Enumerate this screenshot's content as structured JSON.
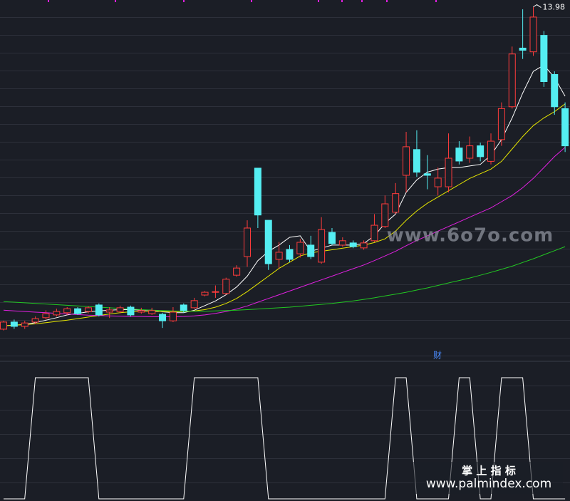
{
  "chart_data": [
    {
      "type": "candlestick",
      "ylim": [
        2.6,
        14.2
      ],
      "up_color": "#ff3c3c",
      "down_color": "#54eef2",
      "open": [
        3.59,
        3.82,
        3.68,
        3.82,
        3.96,
        4.05,
        4.12,
        4.25,
        4.16,
        4.37,
        4.14,
        4.16,
        4.3,
        4.14,
        4.09,
        4.07,
        3.86,
        4.37,
        4.28,
        4.69,
        4.78,
        4.74,
        5.33,
        5.93,
        8.78,
        7.1,
        5.84,
        6.16,
        6.02,
        6.3,
        5.75,
        6.71,
        6.3,
        6.37,
        6.21,
        6.44,
        6.9,
        7.36,
        8.55,
        9.38,
        8.6,
        8.18,
        8.18,
        9.43,
        9.1,
        9.5,
        9.0,
        9.7,
        10.76,
        12.65,
        12.53,
        13.06,
        11.8,
        10.7
      ],
      "high": [
        3.86,
        3.9,
        3.86,
        4.0,
        4.2,
        4.25,
        4.3,
        4.3,
        4.33,
        4.42,
        4.3,
        4.35,
        4.35,
        4.28,
        4.28,
        4.12,
        4.3,
        4.42,
        4.6,
        4.82,
        5.0,
        5.25,
        5.65,
        7.1,
        8.78,
        7.1,
        6.4,
        6.3,
        6.5,
        6.6,
        7.2,
        6.85,
        6.55,
        6.45,
        6.45,
        7.3,
        7.9,
        8.3,
        9.95,
        10.0,
        9.2,
        8.8,
        9.9,
        9.65,
        9.8,
        9.6,
        9.9,
        10.9,
        12.7,
        13.9,
        13.98,
        13.2,
        11.9,
        10.9
      ],
      "low": [
        3.55,
        3.6,
        3.6,
        3.75,
        3.9,
        4.0,
        4.05,
        4.05,
        4.1,
        4.0,
        3.95,
        4.1,
        4.0,
        4.09,
        4.05,
        3.63,
        3.82,
        4.12,
        4.25,
        4.65,
        4.6,
        4.7,
        5.28,
        5.6,
        6.85,
        5.5,
        5.55,
        5.75,
        5.9,
        5.85,
        5.7,
        6.3,
        6.25,
        6.2,
        6.15,
        6.4,
        6.85,
        7.3,
        8.0,
        8.5,
        8.1,
        7.9,
        8.0,
        8.9,
        8.95,
        9.0,
        8.9,
        9.5,
        10.7,
        12.3,
        12.4,
        11.4,
        10.5,
        9.3
      ],
      "close": [
        3.82,
        3.68,
        3.79,
        3.93,
        4.09,
        4.16,
        4.25,
        4.09,
        4.28,
        4.05,
        4.21,
        4.28,
        4.05,
        4.19,
        4.19,
        3.86,
        4.14,
        4.19,
        4.51,
        4.78,
        4.8,
        5.2,
        5.56,
        6.85,
        7.27,
        5.7,
        6.07,
        5.84,
        6.39,
        5.93,
        6.8,
        6.35,
        6.44,
        6.25,
        6.37,
        6.94,
        7.63,
        7.96,
        9.47,
        8.65,
        8.55,
        8.46,
        9.1,
        9.01,
        9.5,
        9.15,
        9.65,
        10.7,
        12.46,
        12.58,
        13.65,
        11.57,
        10.76,
        9.5
      ],
      "lines": [
        {
          "color": "#ffffff",
          "values": [
            3.7,
            3.72,
            3.74,
            3.8,
            3.88,
            3.96,
            4.05,
            4.1,
            4.15,
            4.18,
            4.2,
            4.22,
            4.22,
            4.2,
            4.2,
            4.15,
            4.12,
            4.12,
            4.2,
            4.35,
            4.5,
            4.7,
            4.95,
            5.3,
            5.8,
            6.1,
            6.3,
            6.55,
            6.6,
            6.1,
            6.2,
            6.3,
            6.3,
            6.3,
            6.35,
            6.6,
            7.0,
            7.3,
            8.0,
            8.4,
            8.65,
            8.75,
            8.8,
            8.8,
            8.85,
            8.9,
            9.2,
            9.7,
            10.4,
            11.2,
            11.9,
            12.1,
            11.7,
            11.1
          ]
        },
        {
          "color": "#e6e600",
          "values": [
            3.7,
            3.72,
            3.74,
            3.76,
            3.8,
            3.84,
            3.88,
            3.93,
            3.98,
            4.03,
            4.08,
            4.12,
            4.15,
            4.17,
            4.17,
            4.16,
            4.15,
            4.16,
            4.18,
            4.22,
            4.3,
            4.42,
            4.58,
            4.8,
            5.05,
            5.3,
            5.55,
            5.75,
            5.95,
            6.05,
            6.1,
            6.15,
            6.2,
            6.25,
            6.3,
            6.38,
            6.5,
            6.75,
            7.1,
            7.4,
            7.65,
            7.85,
            8.05,
            8.25,
            8.45,
            8.6,
            8.75,
            9.0,
            9.4,
            9.8,
            10.15,
            10.4,
            10.6,
            10.85
          ]
        },
        {
          "color": "#e020e0",
          "values": [
            4.2,
            4.18,
            4.16,
            4.14,
            4.12,
            4.1,
            4.08,
            4.06,
            4.04,
            4.03,
            4.02,
            4.01,
            4.0,
            4.0,
            3.99,
            3.99,
            3.99,
            4.0,
            4.02,
            4.05,
            4.1,
            4.16,
            4.24,
            4.34,
            4.46,
            4.58,
            4.7,
            4.82,
            4.94,
            5.06,
            5.18,
            5.3,
            5.42,
            5.54,
            5.66,
            5.8,
            5.95,
            6.1,
            6.28,
            6.45,
            6.6,
            6.75,
            6.9,
            7.05,
            7.2,
            7.35,
            7.5,
            7.7,
            7.9,
            8.15,
            8.45,
            8.8,
            9.15,
            9.45
          ]
        },
        {
          "color": "#22c822",
          "values": [
            4.48,
            4.46,
            4.44,
            4.42,
            4.4,
            4.38,
            4.36,
            4.34,
            4.32,
            4.3,
            4.28,
            4.26,
            4.24,
            4.22,
            4.2,
            4.19,
            4.18,
            4.17,
            4.17,
            4.17,
            4.18,
            4.19,
            4.2,
            4.22,
            4.24,
            4.26,
            4.28,
            4.3,
            4.33,
            4.36,
            4.39,
            4.42,
            4.46,
            4.5,
            4.55,
            4.6,
            4.66,
            4.72,
            4.78,
            4.85,
            4.92,
            5.0,
            5.08,
            5.16,
            5.24,
            5.33,
            5.42,
            5.52,
            5.62,
            5.74,
            5.86,
            5.99,
            6.12,
            6.25
          ]
        }
      ],
      "annotation": "财",
      "watermark": "www.6o7o.com"
    },
    {
      "type": "line",
      "ylim": [
        0,
        1
      ],
      "color": "#ffffff",
      "values": [
        0,
        0,
        0,
        1,
        1,
        1,
        1,
        1,
        1,
        0,
        0,
        0,
        0,
        0,
        0,
        0,
        0,
        0,
        1,
        1,
        1,
        1,
        1,
        1,
        1,
        0,
        0,
        0,
        0,
        0,
        0,
        0,
        0,
        0,
        0,
        0,
        0,
        1,
        1,
        0,
        0,
        0,
        0,
        1,
        1,
        0,
        0,
        1,
        1,
        1,
        0,
        0,
        0,
        0
      ],
      "caption": "掌 上 指 标",
      "site": "www.palmindex.com"
    }
  ]
}
